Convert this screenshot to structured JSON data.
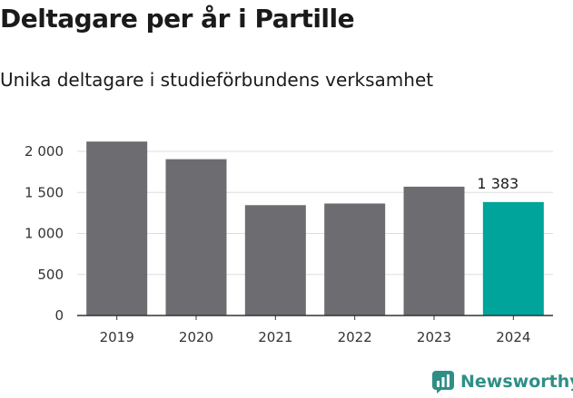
{
  "header": {
    "title": "Deltagare per år i Partille",
    "subtitle": "Unika deltagare i studieförbundens verksamhet"
  },
  "brand": {
    "name": "Newsworthy",
    "icon": "newsworthy-logo-icon",
    "color": "#2f8f86"
  },
  "chart_data": {
    "type": "bar",
    "categories": [
      "2019",
      "2020",
      "2021",
      "2022",
      "2023",
      "2024"
    ],
    "values": [
      2120,
      1905,
      1345,
      1365,
      1570,
      1383
    ],
    "highlight_index": 5,
    "highlight_label": "1 383",
    "colors": {
      "bar": "#6d6c71",
      "highlight": "#00a49a",
      "grid": "#dddddd",
      "axis": "#333333"
    },
    "ylim": [
      0,
      2000
    ],
    "yticks": [
      0,
      500,
      1000,
      1500,
      2000
    ],
    "ytick_labels": [
      "0",
      "500",
      "1 000",
      "1 500",
      "2 000"
    ],
    "grid": true,
    "legend": "none"
  }
}
